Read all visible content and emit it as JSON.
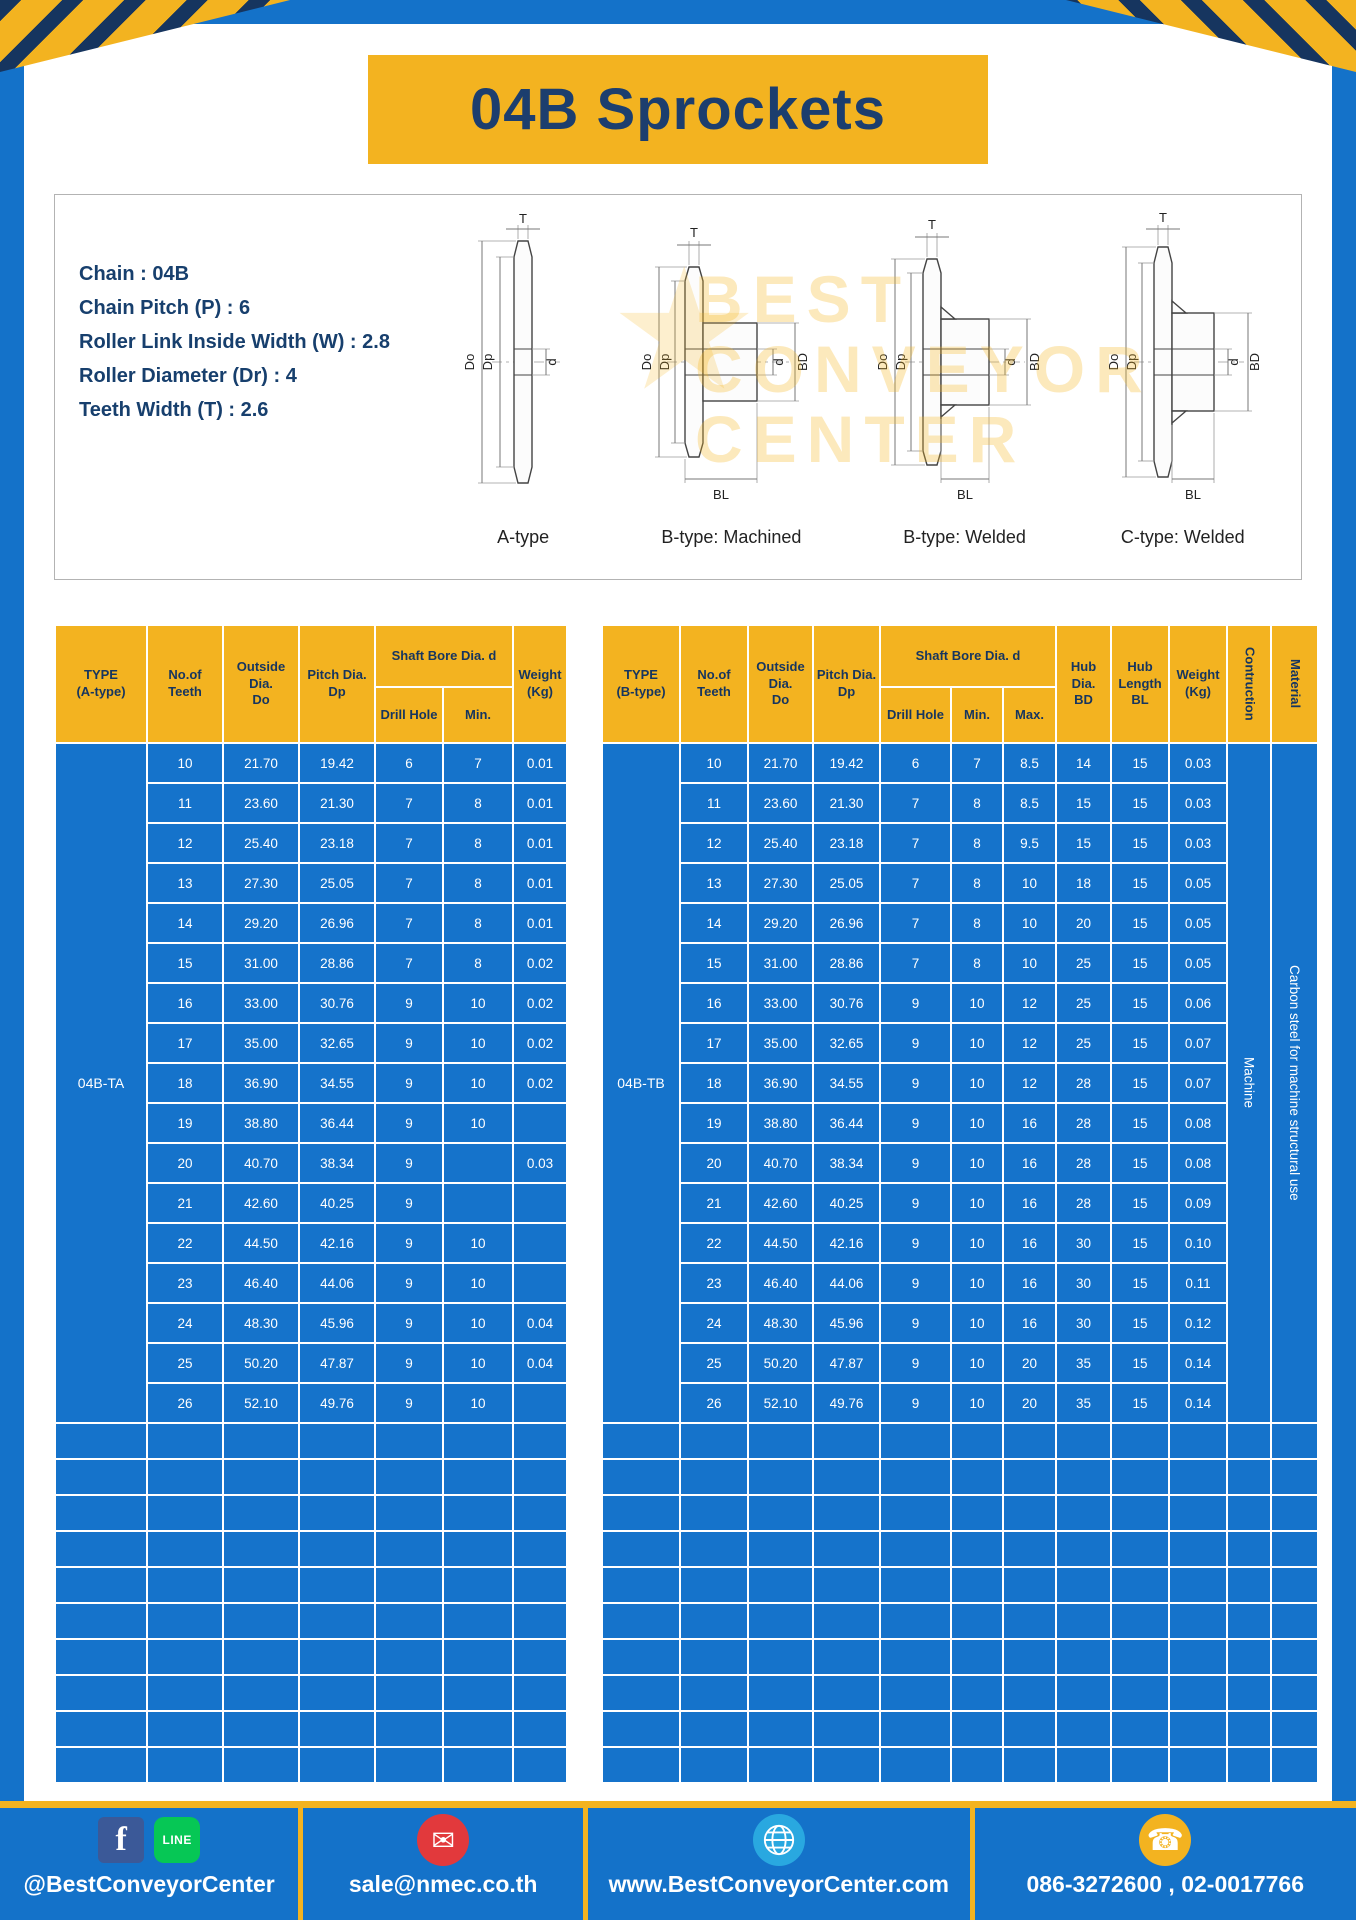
{
  "title": "04B Sprockets",
  "specs": {
    "lines": [
      "Chain : 04B",
      "Chain Pitch (P) : 6",
      "Roller Link Inside Width (W) : 2.8",
      "Roller Diameter (Dr) : 4",
      "Teeth Width (T) : 2.6"
    ]
  },
  "diagrams": {
    "captions": [
      "A-type",
      "B-type: Machined",
      "B-type: Welded",
      "C-type: Welded"
    ],
    "dims": {
      "t": "T",
      "do": "Do",
      "dp": "Dp",
      "d": "d",
      "bd": "BD",
      "bl": "BL"
    }
  },
  "watermark": {
    "star": "★",
    "lines": [
      "BEST",
      "CONVEYOR",
      "CENTER"
    ]
  },
  "table_a": {
    "headers": {
      "type": "TYPE\n(A-type)",
      "teeth": "No.of\nTeeth",
      "outside": "Outside\nDia.\nDo",
      "pitch": "Pitch Dia.\nDp",
      "shaft": "Shaft Bore Dia. d",
      "drill": "Drill Hole",
      "min": "Min.",
      "weight": "Weight\n(Kg)"
    },
    "type_value": "04B-TA",
    "rows": [
      [
        "10",
        "21.70",
        "19.42",
        "6",
        "7",
        "0.01"
      ],
      [
        "11",
        "23.60",
        "21.30",
        "7",
        "8",
        "0.01"
      ],
      [
        "12",
        "25.40",
        "23.18",
        "7",
        "8",
        "0.01"
      ],
      [
        "13",
        "27.30",
        "25.05",
        "7",
        "8",
        "0.01"
      ],
      [
        "14",
        "29.20",
        "26.96",
        "7",
        "8",
        "0.01"
      ],
      [
        "15",
        "31.00",
        "28.86",
        "7",
        "8",
        "0.02"
      ],
      [
        "16",
        "33.00",
        "30.76",
        "9",
        "10",
        "0.02"
      ],
      [
        "17",
        "35.00",
        "32.65",
        "9",
        "10",
        "0.02"
      ],
      [
        "18",
        "36.90",
        "34.55",
        "9",
        "10",
        "0.02"
      ],
      [
        "19",
        "38.80",
        "36.44",
        "9",
        "10",
        ""
      ],
      [
        "20",
        "40.70",
        "38.34",
        "9",
        "",
        "0.03"
      ],
      [
        "21",
        "42.60",
        "40.25",
        "9",
        "",
        ""
      ],
      [
        "22",
        "44.50",
        "42.16",
        "9",
        "10",
        ""
      ],
      [
        "23",
        "46.40",
        "44.06",
        "9",
        "10",
        ""
      ],
      [
        "24",
        "48.30",
        "45.96",
        "9",
        "10",
        "0.04"
      ],
      [
        "25",
        "50.20",
        "47.87",
        "9",
        "10",
        "0.04"
      ],
      [
        "26",
        "52.10",
        "49.76",
        "9",
        "10",
        ""
      ]
    ],
    "empty_row_count": 10
  },
  "table_b": {
    "headers": {
      "type": "TYPE\n(B-type)",
      "teeth": "No.of\nTeeth",
      "outside": "Outside\nDia.\nDo",
      "pitch": "Pitch Dia.\nDp",
      "shaft": "Shaft Bore Dia. d",
      "drill": "Drill Hole",
      "min": "Min.",
      "max": "Max.",
      "hub_dia": "Hub Dia.\nBD",
      "hub_len": "Hub\nLength\nBL",
      "weight": "Weight\n(Kg)",
      "construction": "Contruction",
      "material": "Material"
    },
    "type_value": "04B-TB",
    "construction_value": "Machine",
    "material_value": "Carbon steel for machine structural use",
    "rows": [
      [
        "10",
        "21.70",
        "19.42",
        "6",
        "7",
        "8.5",
        "14",
        "15",
        "0.03"
      ],
      [
        "11",
        "23.60",
        "21.30",
        "7",
        "8",
        "8.5",
        "15",
        "15",
        "0.03"
      ],
      [
        "12",
        "25.40",
        "23.18",
        "7",
        "8",
        "9.5",
        "15",
        "15",
        "0.03"
      ],
      [
        "13",
        "27.30",
        "25.05",
        "7",
        "8",
        "10",
        "18",
        "15",
        "0.05"
      ],
      [
        "14",
        "29.20",
        "26.96",
        "7",
        "8",
        "10",
        "20",
        "15",
        "0.05"
      ],
      [
        "15",
        "31.00",
        "28.86",
        "7",
        "8",
        "10",
        "25",
        "15",
        "0.05"
      ],
      [
        "16",
        "33.00",
        "30.76",
        "9",
        "10",
        "12",
        "25",
        "15",
        "0.06"
      ],
      [
        "17",
        "35.00",
        "32.65",
        "9",
        "10",
        "12",
        "25",
        "15",
        "0.07"
      ],
      [
        "18",
        "36.90",
        "34.55",
        "9",
        "10",
        "12",
        "28",
        "15",
        "0.07"
      ],
      [
        "19",
        "38.80",
        "36.44",
        "9",
        "10",
        "16",
        "28",
        "15",
        "0.08"
      ],
      [
        "20",
        "40.70",
        "38.34",
        "9",
        "10",
        "16",
        "28",
        "15",
        "0.08"
      ],
      [
        "21",
        "42.60",
        "40.25",
        "9",
        "10",
        "16",
        "28",
        "15",
        "0.09"
      ],
      [
        "22",
        "44.50",
        "42.16",
        "9",
        "10",
        "16",
        "30",
        "15",
        "0.10"
      ],
      [
        "23",
        "46.40",
        "44.06",
        "9",
        "10",
        "16",
        "30",
        "15",
        "0.11"
      ],
      [
        "24",
        "48.30",
        "45.96",
        "9",
        "10",
        "16",
        "30",
        "15",
        "0.12"
      ],
      [
        "25",
        "50.20",
        "47.87",
        "9",
        "10",
        "20",
        "35",
        "15",
        "0.14"
      ],
      [
        "26",
        "52.10",
        "49.76",
        "9",
        "10",
        "20",
        "35",
        "15",
        "0.14"
      ]
    ],
    "empty_row_count": 10
  },
  "footer": {
    "social": "@BestConveyorCenter",
    "email": "sale@nmec.co.th",
    "website": "www.BestConveyorCenter.com",
    "phone": "086-3272600 , 02-0017766",
    "icons": {
      "facebook": "f",
      "line": "LINE",
      "mail": "✉",
      "globe": "globe",
      "phone": "☎"
    }
  },
  "colors": {
    "page_blue": "#1472c9",
    "cell_blue": "#1573cb",
    "accent_yellow": "#f3b320",
    "navy_text": "#1c3e6e"
  }
}
